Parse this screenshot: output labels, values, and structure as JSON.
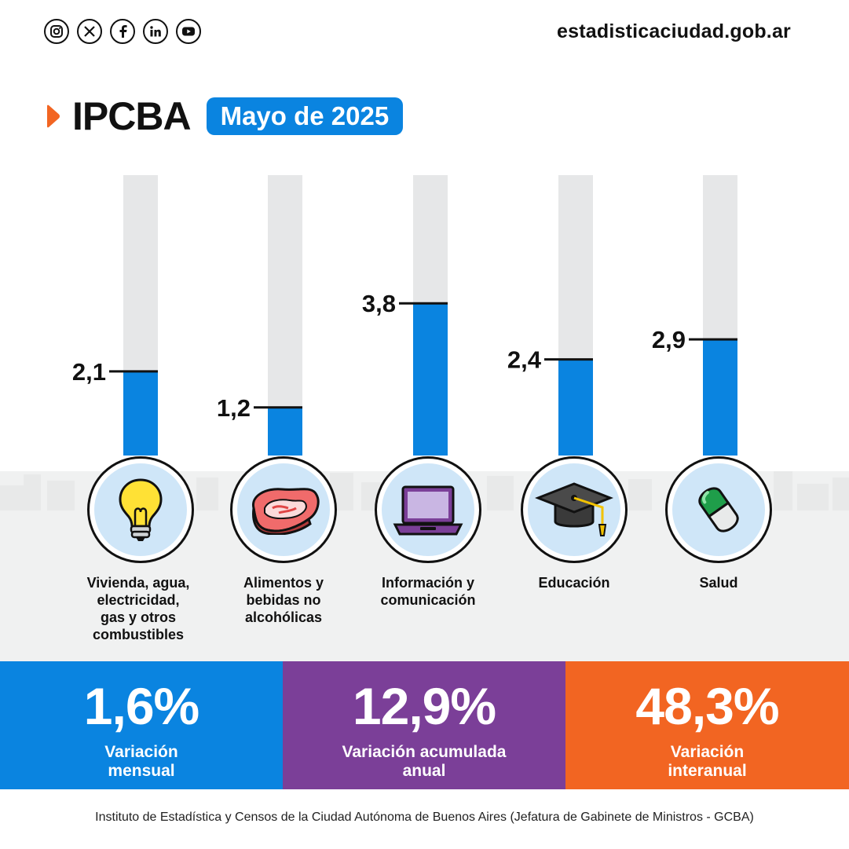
{
  "header": {
    "website": "estadisticaciudad.gob.ar",
    "social_icons": [
      "instagram-icon",
      "x-icon",
      "facebook-icon",
      "linkedin-icon",
      "youtube-icon"
    ]
  },
  "title": "IPCBA",
  "period_badge": "Mayo de 2025",
  "colors": {
    "bar_fill": "#0a84e0",
    "bar_track": "#e6e7e8",
    "accent_orange": "#f26522",
    "accent_purple": "#7b3f98",
    "accent_blue": "#0a84e0"
  },
  "chart_data": {
    "type": "bar",
    "categories": [
      "Vivienda, agua, electricidad, gas y otros combustibles",
      "Alimentos y bebidas no alcohólicas",
      "Información y comunicación",
      "Educación",
      "Salud"
    ],
    "values": [
      2.1,
      1.2,
      3.8,
      2.4,
      2.9
    ],
    "value_labels": [
      "2,1",
      "1,2",
      "3,8",
      "2,4",
      "2,9"
    ],
    "icons": [
      "lightbulb-icon",
      "meat-icon",
      "laptop-icon",
      "graduation-cap-icon",
      "pill-icon"
    ],
    "ylim": [
      0,
      7
    ],
    "grid": false,
    "legend": "none"
  },
  "categories_display": [
    [
      "Vivienda, agua,",
      "electricidad,",
      "gas y otros",
      "combustibles"
    ],
    [
      "Alimentos y",
      "bebidas no",
      "alcohólicas"
    ],
    [
      "Información y",
      "comunicación"
    ],
    [
      "Educación"
    ],
    [
      "Salud"
    ]
  ],
  "stats": [
    {
      "value": "1,6%",
      "label": "Variación mensual",
      "color": "#0a84e0"
    },
    {
      "value": "12,9%",
      "label": "Variación acumulada anual",
      "color": "#7b3f98"
    },
    {
      "value": "48,3%",
      "label": "Variación interanual",
      "color": "#f26522"
    }
  ],
  "footer": "Instituto de Estadística y Censos de la Ciudad Autónoma de Buenos Aires (Jefatura de Gabinete de Ministros - GCBA)"
}
